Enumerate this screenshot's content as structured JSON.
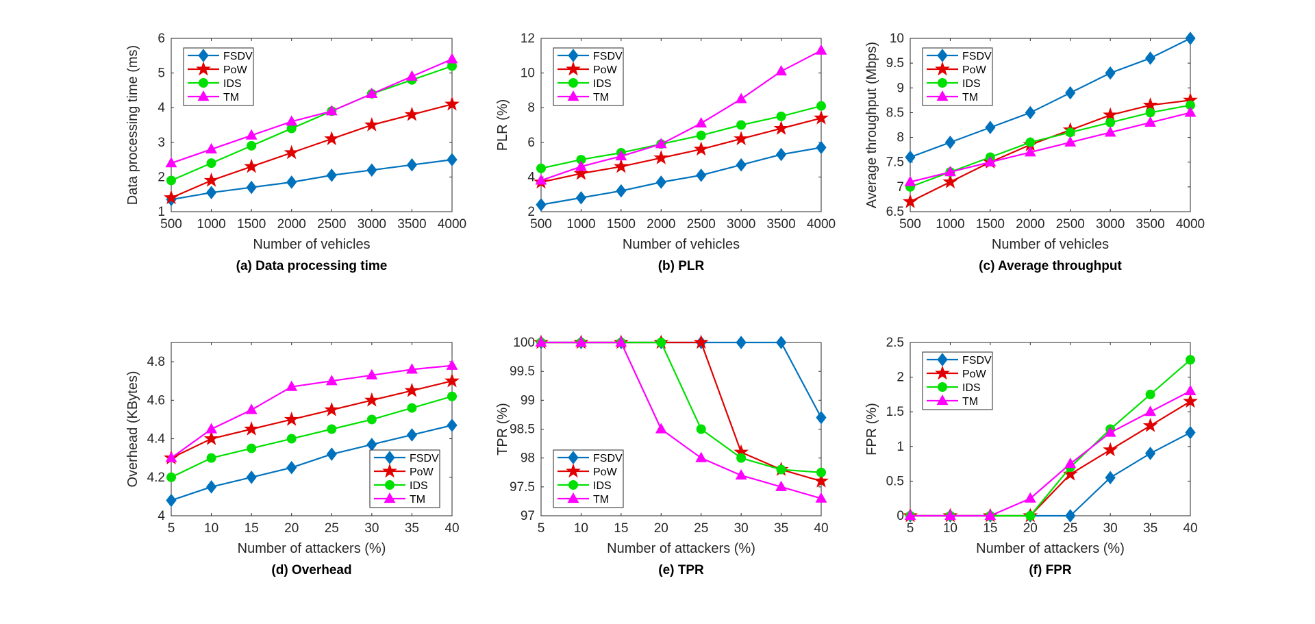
{
  "figure": {
    "colors": {
      "FSDV": "#0072BD",
      "PoW": "#E00000",
      "IDS": "#00E000",
      "TM": "#FF00FF"
    },
    "markers": {
      "FSDV": "diamond",
      "PoW": "star",
      "IDS": "circle",
      "TM": "triangle"
    }
  },
  "chart_data": [
    {
      "id": "a",
      "type": "line",
      "caption": "(a) Data processing time",
      "xlabel": "Number of vehicles",
      "ylabel": "Data processing time (ms)",
      "x": [
        500,
        1000,
        1500,
        2000,
        2500,
        3000,
        3500,
        4000
      ],
      "xticks": [
        500,
        1000,
        1500,
        2000,
        2500,
        3000,
        3500,
        4000
      ],
      "xlim": [
        500,
        4000
      ],
      "ylim": [
        1,
        6
      ],
      "yticks": [
        1,
        2,
        3,
        4,
        5,
        6
      ],
      "grid": false,
      "legend": "top-left",
      "series": [
        {
          "name": "FSDV",
          "values": [
            1.35,
            1.55,
            1.7,
            1.85,
            2.05,
            2.2,
            2.35,
            2.5
          ]
        },
        {
          "name": "PoW",
          "values": [
            1.4,
            1.9,
            2.3,
            2.7,
            3.1,
            3.5,
            3.8,
            4.1
          ]
        },
        {
          "name": "IDS",
          "values": [
            1.9,
            2.4,
            2.9,
            3.4,
            3.9,
            4.4,
            4.8,
            5.2
          ]
        },
        {
          "name": "TM",
          "values": [
            2.4,
            2.8,
            3.2,
            3.6,
            3.9,
            4.4,
            4.9,
            5.4
          ]
        }
      ]
    },
    {
      "id": "b",
      "type": "line",
      "caption": "(b) PLR",
      "xlabel": "Number of vehicles",
      "ylabel": "PLR (%)",
      "x": [
        500,
        1000,
        1500,
        2000,
        2500,
        3000,
        3500,
        4000
      ],
      "xticks": [
        500,
        1000,
        1500,
        2000,
        2500,
        3000,
        3500,
        4000
      ],
      "xlim": [
        500,
        4000
      ],
      "ylim": [
        2,
        12
      ],
      "yticks": [
        2,
        4,
        6,
        8,
        10,
        12
      ],
      "grid": false,
      "legend": "top-left",
      "series": [
        {
          "name": "FSDV",
          "values": [
            2.4,
            2.8,
            3.2,
            3.7,
            4.1,
            4.7,
            5.3,
            5.7
          ]
        },
        {
          "name": "PoW",
          "values": [
            3.7,
            4.2,
            4.6,
            5.1,
            5.6,
            6.2,
            6.8,
            7.4
          ]
        },
        {
          "name": "IDS",
          "values": [
            4.5,
            5.0,
            5.4,
            5.9,
            6.4,
            7.0,
            7.5,
            8.1
          ]
        },
        {
          "name": "TM",
          "values": [
            3.8,
            4.6,
            5.2,
            5.9,
            7.1,
            8.5,
            10.1,
            11.3
          ]
        }
      ]
    },
    {
      "id": "c",
      "type": "line",
      "caption": "(c) Average throughput",
      "xlabel": "Number of vehicles",
      "ylabel": "Average throughput (Mbps)",
      "x": [
        500,
        1000,
        1500,
        2000,
        2500,
        3000,
        3500,
        4000
      ],
      "xticks": [
        500,
        1000,
        1500,
        2000,
        2500,
        3000,
        3500,
        4000
      ],
      "xlim": [
        500,
        4000
      ],
      "ylim": [
        6.5,
        10
      ],
      "yticks": [
        6.5,
        7,
        7.5,
        8,
        8.5,
        9,
        9.5,
        10
      ],
      "grid": false,
      "legend": "top-left",
      "series": [
        {
          "name": "FSDV",
          "values": [
            7.6,
            7.9,
            8.2,
            8.5,
            8.9,
            9.3,
            9.6,
            10.0
          ]
        },
        {
          "name": "PoW",
          "values": [
            6.7,
            7.1,
            7.5,
            7.85,
            8.15,
            8.45,
            8.65,
            8.75
          ]
        },
        {
          "name": "IDS",
          "values": [
            7.0,
            7.3,
            7.6,
            7.9,
            8.1,
            8.3,
            8.5,
            8.65
          ]
        },
        {
          "name": "TM",
          "values": [
            7.1,
            7.3,
            7.5,
            7.7,
            7.9,
            8.1,
            8.3,
            8.5
          ]
        }
      ]
    },
    {
      "id": "d",
      "type": "line",
      "caption": "(d) Overhead",
      "xlabel": "Number of attackers (%)",
      "ylabel": "Overhead (KBytes)",
      "x": [
        5,
        10,
        15,
        20,
        25,
        30,
        35,
        40
      ],
      "xticks": [
        5,
        10,
        15,
        20,
        25,
        30,
        35,
        40
      ],
      "xlim": [
        5,
        40
      ],
      "ylim": [
        4,
        4.9
      ],
      "yticks": [
        4,
        4.2,
        4.4,
        4.6,
        4.8
      ],
      "grid": false,
      "legend": "bottom-right",
      "series": [
        {
          "name": "FSDV",
          "values": [
            4.08,
            4.15,
            4.2,
            4.25,
            4.32,
            4.37,
            4.42,
            4.47
          ]
        },
        {
          "name": "PoW",
          "values": [
            4.3,
            4.4,
            4.45,
            4.5,
            4.55,
            4.6,
            4.65,
            4.7
          ]
        },
        {
          "name": "IDS",
          "values": [
            4.2,
            4.3,
            4.35,
            4.4,
            4.45,
            4.5,
            4.56,
            4.62
          ]
        },
        {
          "name": "TM",
          "values": [
            4.3,
            4.45,
            4.55,
            4.67,
            4.7,
            4.73,
            4.76,
            4.78
          ]
        }
      ]
    },
    {
      "id": "e",
      "type": "line",
      "caption": "(e) TPR",
      "xlabel": "Number of attackers (%)",
      "ylabel": "TPR (%)",
      "x": [
        5,
        10,
        15,
        20,
        25,
        30,
        35,
        40
      ],
      "xticks": [
        5,
        10,
        15,
        20,
        25,
        30,
        35,
        40
      ],
      "xlim": [
        5,
        40
      ],
      "ylim": [
        97,
        100
      ],
      "yticks": [
        97,
        97.5,
        98,
        98.5,
        99,
        99.5,
        100
      ],
      "grid": false,
      "legend": "bottom-left",
      "series": [
        {
          "name": "FSDV",
          "values": [
            100,
            100,
            100,
            100,
            100,
            100,
            100,
            98.7
          ]
        },
        {
          "name": "PoW",
          "values": [
            100,
            100,
            100,
            100,
            100,
            98.1,
            97.8,
            97.6
          ]
        },
        {
          "name": "IDS",
          "values": [
            100,
            100,
            100,
            100,
            98.5,
            98.0,
            97.8,
            97.75
          ]
        },
        {
          "name": "TM",
          "values": [
            100,
            100,
            100,
            98.5,
            98.0,
            97.7,
            97.5,
            97.3
          ]
        }
      ]
    },
    {
      "id": "f",
      "type": "line",
      "caption": "(f) FPR",
      "xlabel": "Number of attackers (%)",
      "ylabel": "FPR (%)",
      "x": [
        5,
        10,
        15,
        20,
        25,
        30,
        35,
        40
      ],
      "xticks": [
        5,
        10,
        15,
        20,
        25,
        30,
        35,
        40
      ],
      "xlim": [
        5,
        40
      ],
      "ylim": [
        0,
        2.5
      ],
      "yticks": [
        0,
        0.5,
        1,
        1.5,
        2,
        2.5
      ],
      "grid": false,
      "legend": "top-left",
      "series": [
        {
          "name": "FSDV",
          "values": [
            0,
            0,
            0,
            0,
            0,
            0.55,
            0.9,
            1.2
          ]
        },
        {
          "name": "PoW",
          "values": [
            0,
            0,
            0,
            0,
            0.6,
            0.95,
            1.3,
            1.65
          ]
        },
        {
          "name": "IDS",
          "values": [
            0,
            0,
            0,
            0,
            0.7,
            1.25,
            1.75,
            2.25
          ]
        },
        {
          "name": "TM",
          "values": [
            0,
            0,
            0,
            0.25,
            0.75,
            1.2,
            1.5,
            1.8
          ]
        }
      ]
    }
  ]
}
